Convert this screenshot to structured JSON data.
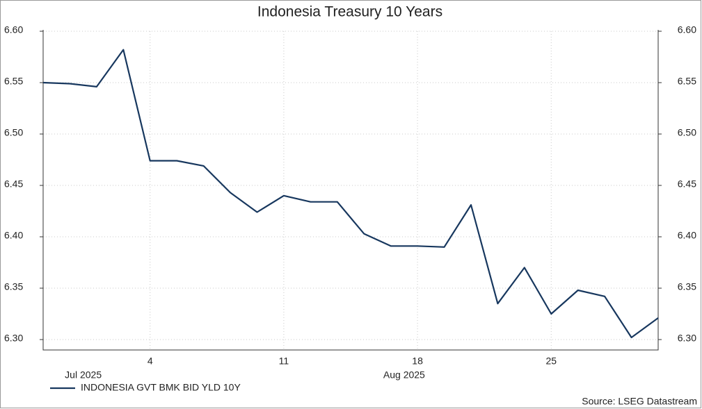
{
  "chart_data": {
    "type": "line",
    "title": "Indonesia Treasury 10 Years",
    "categories": [
      null,
      null,
      null,
      null,
      "4",
      null,
      null,
      null,
      null,
      "11",
      null,
      null,
      null,
      null,
      "18",
      null,
      null,
      null,
      null,
      "25",
      null,
      null,
      null,
      null
    ],
    "x_groups": [
      {
        "label": "Jul 2025",
        "span": [
          0,
          3
        ]
      },
      {
        "label": "Aug 2025",
        "span": [
          4,
          23
        ]
      }
    ],
    "series": [
      {
        "name": "INDONESIA GVT BMK BID YLD 10Y",
        "color": "#17375e",
        "values": [
          6.55,
          6.549,
          6.546,
          6.582,
          6.474,
          6.474,
          6.469,
          6.443,
          6.424,
          6.44,
          6.434,
          6.434,
          6.403,
          6.391,
          6.391,
          6.39,
          6.431,
          6.335,
          6.37,
          6.325,
          6.348,
          6.342,
          6.302,
          6.321
        ]
      }
    ],
    "ylim": [
      6.3,
      6.6
    ],
    "yticks": [
      {
        "value": 6.3,
        "label": "6.30"
      },
      {
        "value": 6.35,
        "label": "6.35"
      },
      {
        "value": 6.4,
        "label": "6.40"
      },
      {
        "value": 6.45,
        "label": "6.45"
      },
      {
        "value": 6.5,
        "label": "6.50"
      },
      {
        "value": 6.55,
        "label": "6.55"
      },
      {
        "value": 6.6,
        "label": "6.60"
      }
    ],
    "grid": true,
    "legend": "bottom-left",
    "source": "Source: LSEG Datastream"
  }
}
